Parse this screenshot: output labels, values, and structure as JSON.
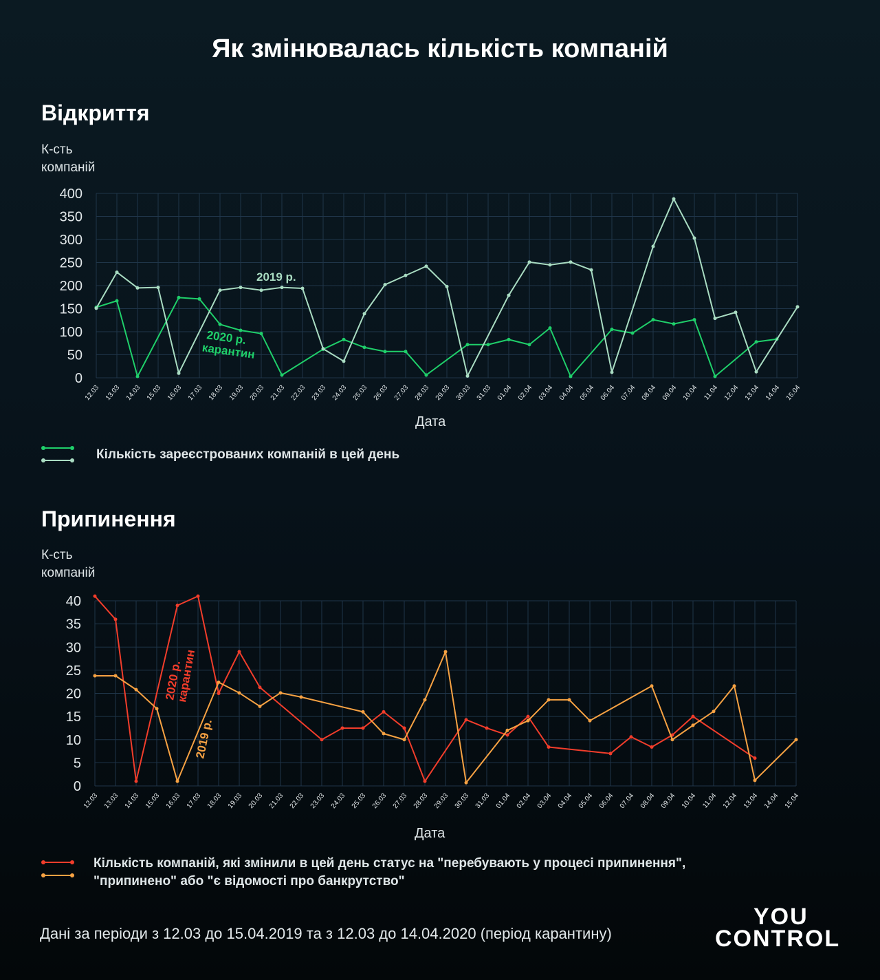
{
  "title": "Як змінювалась кількість компаній",
  "colors": {
    "grid": "#1f3549",
    "g2020": "#1fcf6a",
    "g2019": "#a9dcc2",
    "r2020": "#f23d2b",
    "o2019": "#f7a243",
    "tick": "#e2e8ea"
  },
  "chart_data": [
    {
      "type": "line",
      "title": "Відкриття",
      "ylabel": "К-сть компаній",
      "xlabel": "Дата",
      "ylim": [
        0,
        400
      ],
      "yticks": [
        0,
        50,
        100,
        150,
        200,
        250,
        300,
        350,
        400
      ],
      "grid": true,
      "legend": "Кількість зареєстрованих компаній в цей день",
      "annotations": [
        "2019 р.",
        "2020 р. карантин"
      ],
      "categories": [
        "12.03",
        "13.03",
        "14.03",
        "15.03",
        "16.03",
        "17.03",
        "18.03",
        "19.03",
        "20.03",
        "21.03",
        "22.03",
        "23.03",
        "24.03",
        "25.03",
        "26.03",
        "27.03",
        "28.03",
        "29.03",
        "30.03",
        "31.03",
        "01.04",
        "02.04",
        "03.04",
        "04.04",
        "05.04",
        "06.04",
        "07.04",
        "08.04",
        "09.04",
        "10.04",
        "11.04",
        "12.04",
        "13.04",
        "14.04",
        "15.04"
      ],
      "series": [
        {
          "name": "2020 р. карантин",
          "color": "#1fcf6a",
          "values": [
            153,
            167,
            3,
            null,
            174,
            171,
            116,
            103,
            96,
            6,
            null,
            62,
            83,
            66,
            57,
            57,
            6,
            null,
            72,
            72,
            83,
            72,
            108,
            3,
            null,
            105,
            97,
            126,
            117,
            126,
            3,
            null,
            78,
            84,
            null
          ]
        },
        {
          "name": "2019 р.",
          "color": "#a9dcc2",
          "values": [
            151,
            229,
            195,
            196,
            10,
            null,
            190,
            196,
            190,
            196,
            194,
            63,
            36,
            139,
            202,
            222,
            242,
            198,
            4,
            null,
            179,
            251,
            245,
            251,
            234,
            12,
            null,
            285,
            388,
            303,
            129,
            142,
            13,
            null,
            154
          ]
        }
      ]
    },
    {
      "type": "line",
      "title": "Припинення",
      "ylabel": "К-сть компаній",
      "xlabel": "Дата",
      "ylim": [
        0,
        40
      ],
      "yticks": [
        0,
        5,
        10,
        15,
        20,
        25,
        30,
        35,
        40
      ],
      "grid": true,
      "legend": "Кількість компаній, які змінили в цей день статус на \"перебувають у процесі припинення\", \"припинено\" або \"є відомості про банкрутство\"",
      "annotations": [
        "2020 р. карантин",
        "2019 р."
      ],
      "categories": [
        "12.03",
        "13.03",
        "14.03",
        "15.03",
        "16.03",
        "17.03",
        "18.03",
        "19.03",
        "20.03",
        "21.03",
        "22.03",
        "23.03",
        "24.03",
        "25.03",
        "26.03",
        "27.03",
        "28.03",
        "29.03",
        "30.03",
        "31.03",
        "01.04",
        "02.04",
        "03.04",
        "04.04",
        "05.04",
        "06.04",
        "07.04",
        "08.04",
        "09.04",
        "10.04",
        "11.04",
        "12.04",
        "13.04",
        "14.04",
        "15.04"
      ],
      "series": [
        {
          "name": "2020 р. карантин",
          "color": "#f23d2b",
          "values": [
            41,
            36,
            1,
            null,
            39,
            41,
            20,
            29,
            21.3,
            null,
            null,
            10,
            12.5,
            12.5,
            16,
            12.5,
            1,
            null,
            14.3,
            12.5,
            11,
            15,
            8.4,
            null,
            null,
            7,
            10.6,
            8.4,
            11,
            15,
            null,
            null,
            6,
            null,
            null
          ]
        },
        {
          "name": "2019 р.",
          "color": "#f7a243",
          "values": [
            23.8,
            23.8,
            20.8,
            16.7,
            1,
            null,
            22.4,
            20.1,
            17.2,
            20.1,
            19.2,
            null,
            null,
            16,
            11.3,
            10,
            18.6,
            29,
            0.7,
            null,
            12,
            14.1,
            18.6,
            18.6,
            14.1,
            null,
            null,
            21.6,
            10,
            13.1,
            16.1,
            21.6,
            1.2,
            null,
            10
          ]
        }
      ]
    }
  ],
  "legend_lines": [
    "Кількість компаній, які змінили в цей день статус на \"перебувають у процесі припинення\",",
    "\"припинено\" або \"є відомості про банкрутство\""
  ],
  "ylabel_lines": [
    "К-сть",
    "компаній"
  ],
  "annotations2": {
    "a2020l1": "2020 р.",
    "a2020l2": "карантин"
  },
  "footer": "Дані за періоди з 12.03 до 15.04.2019 та з 12.03 до 14.04.2020 (період карантину)",
  "logo": {
    "line1": "YOU",
    "line2": "CONTROL"
  }
}
